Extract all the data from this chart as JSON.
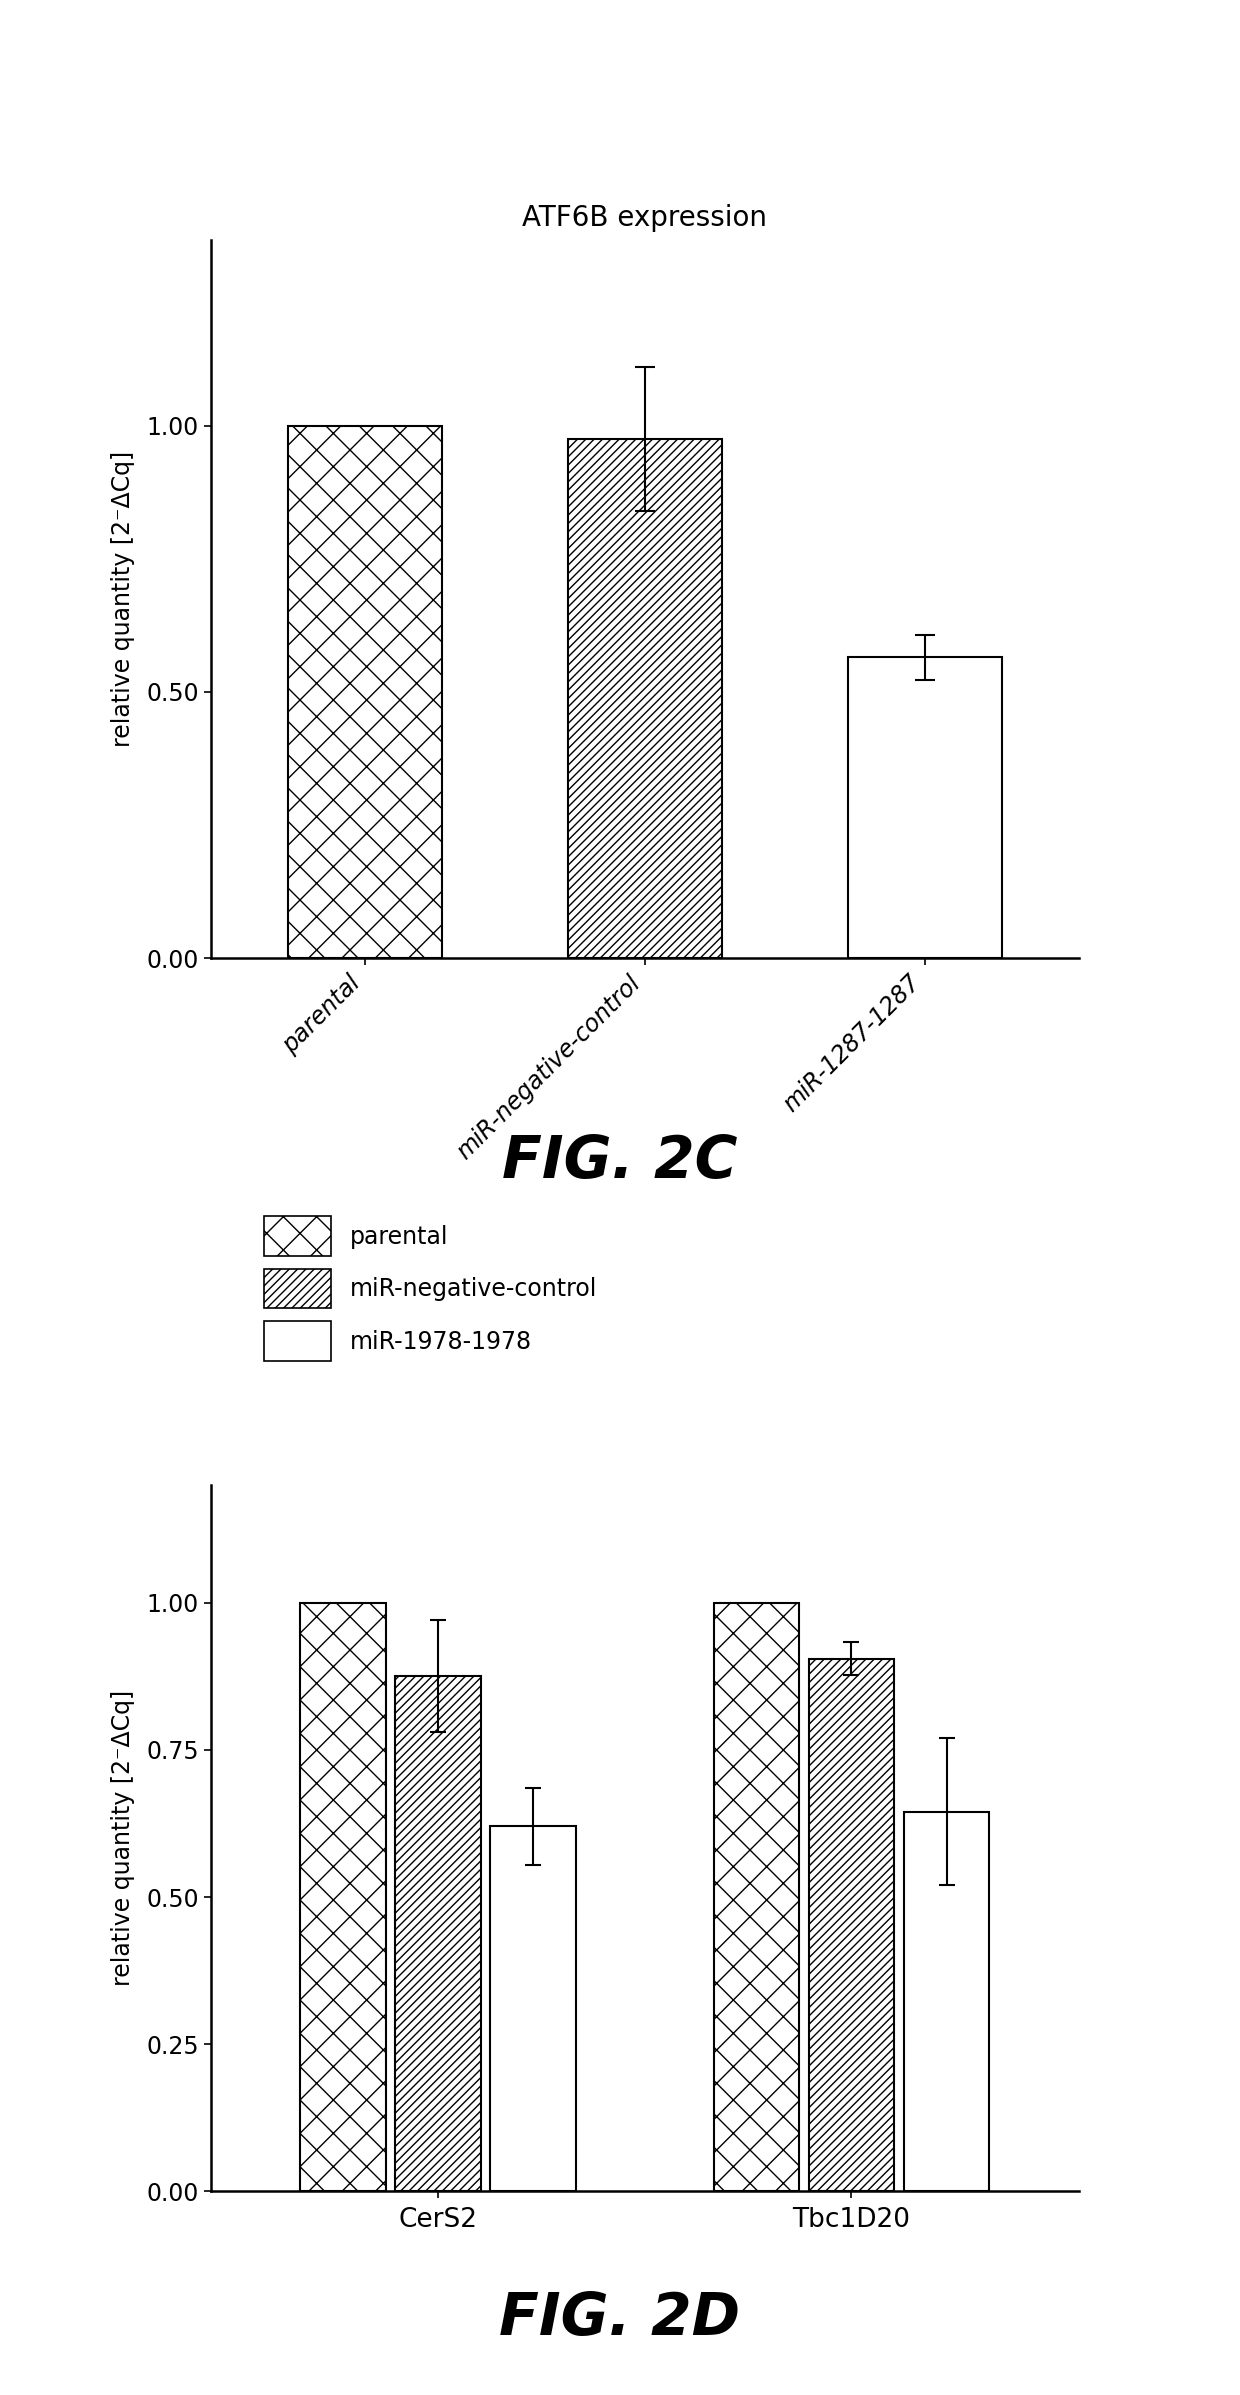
{
  "fig2c": {
    "title": "ATF6B expression",
    "ylabel": "relative quantity [2⁻ΔCq]",
    "categories": [
      "parental",
      "miR-negative-control",
      "miR-1287-1287"
    ],
    "values": [
      1.0,
      0.975,
      0.565
    ],
    "errors": [
      0.0,
      0.135,
      0.042
    ],
    "ylim": [
      0.0,
      1.35
    ],
    "yticks": [
      0.0,
      0.5,
      1.0
    ],
    "bar_width": 0.55,
    "hatches": [
      "x",
      "////",
      ""
    ],
    "fig_label": "FIG. 2C"
  },
  "fig2d": {
    "ylabel": "relative quantity [2⁻ΔCq]",
    "groups": [
      "CerS2",
      "Tbc1D20"
    ],
    "series": [
      "parental",
      "miR-negative-control",
      "miR-1978-1978"
    ],
    "values": [
      [
        1.0,
        0.875,
        0.62
      ],
      [
        1.0,
        0.905,
        0.645
      ]
    ],
    "errors": [
      [
        0.0,
        0.095,
        0.065
      ],
      [
        0.0,
        0.028,
        0.125
      ]
    ],
    "ylim": [
      0.0,
      1.2
    ],
    "yticks": [
      0.0,
      0.25,
      0.5,
      0.75,
      1.0
    ],
    "bar_width": 0.23,
    "hatches": [
      "x",
      "////",
      ""
    ],
    "fig_label": "FIG. 2D",
    "legend_labels": [
      "parental",
      "miR-negative-control",
      "miR-1978-1978"
    ]
  },
  "background_color": "#ffffff",
  "bar_edge_color": "#000000"
}
